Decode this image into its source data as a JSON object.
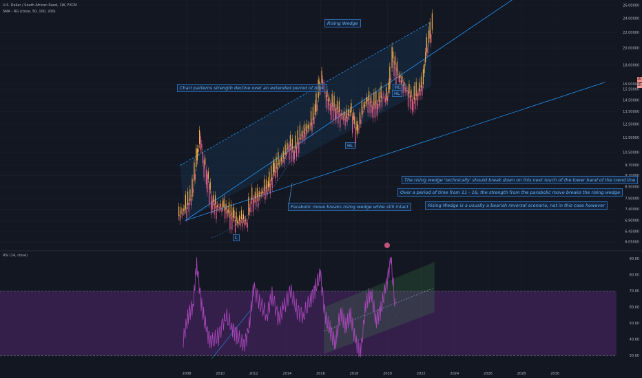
{
  "header": {
    "symbol": "U.S. Dollar / South African Rand, 1W, FXCM",
    "indicator": "SMA - RG (close, 50, 100, 200)",
    "rsi_label": "RSI (14, close)"
  },
  "annotations": {
    "title": "Rising Wedge",
    "strength": "Chart patterns strength decline over an extended period of time",
    "parabolic": "Parabolic move breaks rising wedge while still intact",
    "note1": "The rising wedge 'technically' should break down on this next touch of the lower band of the trend line",
    "note2": "Over a period of time from 11 - 16, the strength from the parabolic move breaks the rising wedge",
    "note3": "Rising Wedge is a usually a bearish reversal scenario, not in this case however",
    "hl1": "HL",
    "hl2": "HL",
    "hl3": "HL",
    "l": "L"
  },
  "price_badges": [
    "16.45000",
    "16.32588"
  ],
  "colors": {
    "background": "#131722",
    "trendline": "#2196f3",
    "candle_up": "#ffb74d",
    "candle_down": "#f06292",
    "rsi": "#ab47bc",
    "rsi_band": "#5c2a7a",
    "channel": "#4caf50"
  },
  "chart_data": [
    {
      "type": "line",
      "title": "U.S. Dollar / South African Rand, 1W, FXCM",
      "x_ticks": [
        "2008",
        "2010",
        "2012",
        "2014",
        "2016",
        "2018",
        "2020",
        "2022",
        "2024",
        "2026",
        "2028",
        "2030"
      ],
      "y_ticks": [
        "26.00000",
        "24.00000",
        "22.00000",
        "20.00000",
        "18.00000",
        "16.00000",
        "15.50000",
        "14.50000",
        "13.50000",
        "12.50000",
        "11.50000",
        "10.50000",
        "9.70000",
        "9.10000",
        "8.50000",
        "7.90000",
        "7.40000",
        "6.90000",
        "6.45000",
        "6.05000"
      ],
      "y_scale": "log",
      "ylim": [
        6.05,
        26.0
      ],
      "series": [
        {
          "x": [
            2007.5,
            2007.9,
            2008.3,
            2008.6,
            2008.8,
            2009.0,
            2009.2,
            2009.5,
            2009.8,
            2010.2,
            2010.5,
            2010.8,
            2011.0,
            2011.3,
            2011.6,
            2011.8,
            2012.0,
            2012.3,
            2012.6,
            2012.9,
            2013.2,
            2013.5,
            2013.8,
            2014.1,
            2014.4,
            2014.8,
            2015.1,
            2015.4,
            2015.7,
            2015.9,
            2016.1,
            2016.3,
            2016.6,
            2016.9,
            2017.2,
            2017.5,
            2017.8,
            2018.0,
            2018.2,
            2018.5,
            2018.8,
            2019.1,
            2019.4,
            2019.7,
            2019.9,
            2020.1,
            2020.3,
            2020.6,
            2020.9,
            2021.2,
            2021.5,
            2021.8,
            2022.1,
            2022.3,
            2022.5,
            2022.7
          ],
          "values": [
            7.1,
            7.4,
            8.0,
            10.0,
            11.6,
            10.0,
            9.2,
            7.8,
            7.5,
            7.5,
            7.2,
            7.0,
            6.8,
            7.0,
            6.8,
            7.8,
            7.9,
            8.0,
            8.3,
            8.5,
            9.3,
            9.8,
            10.2,
            11.0,
            10.6,
            11.5,
            12.0,
            12.4,
            13.5,
            15.3,
            16.5,
            15.0,
            14.0,
            13.8,
            13.3,
            13.0,
            13.5,
            12.5,
            11.8,
            13.6,
            14.6,
            14.0,
            14.2,
            15.0,
            14.5,
            15.5,
            18.8,
            17.0,
            16.0,
            15.3,
            14.4,
            15.2,
            16.0,
            19.5,
            21.2,
            23.0
          ]
        }
      ]
    },
    {
      "type": "line",
      "title": "RSI (14, close)",
      "x_ticks": [
        "2008",
        "2010",
        "2012",
        "2014",
        "2016",
        "2018",
        "2020",
        "2022",
        "2024",
        "2026",
        "2028",
        "2030"
      ],
      "y_ticks": [
        "90.00",
        "80.00",
        "70.00",
        "60.00",
        "50.00",
        "40.00",
        "30.00"
      ],
      "ylim": [
        28,
        92
      ],
      "band": [
        30,
        70
      ],
      "series": [
        {
          "x": [
            2007.8,
            2008.1,
            2008.4,
            2008.6,
            2008.9,
            2009.2,
            2009.5,
            2009.9,
            2010.3,
            2010.7,
            2011.0,
            2011.4,
            2011.7,
            2012.0,
            2012.4,
            2012.8,
            2013.1,
            2013.5,
            2013.8,
            2014.2,
            2014.6,
            2015.0,
            2015.4,
            2015.7,
            2016.0,
            2016.3,
            2016.6,
            2016.9,
            2017.2,
            2017.5,
            2017.8,
            2018.1,
            2018.4,
            2018.7,
            2019.0,
            2019.3,
            2019.6,
            2019.9,
            2020.2,
            2020.5
          ],
          "values": [
            40,
            55,
            62,
            88,
            60,
            45,
            38,
            42,
            55,
            48,
            42,
            36,
            45,
            72,
            62,
            55,
            68,
            52,
            60,
            70,
            58,
            55,
            65,
            72,
            80,
            52,
            45,
            38,
            58,
            48,
            55,
            38,
            32,
            62,
            70,
            52,
            58,
            72,
            90,
            55
          ]
        }
      ]
    }
  ]
}
